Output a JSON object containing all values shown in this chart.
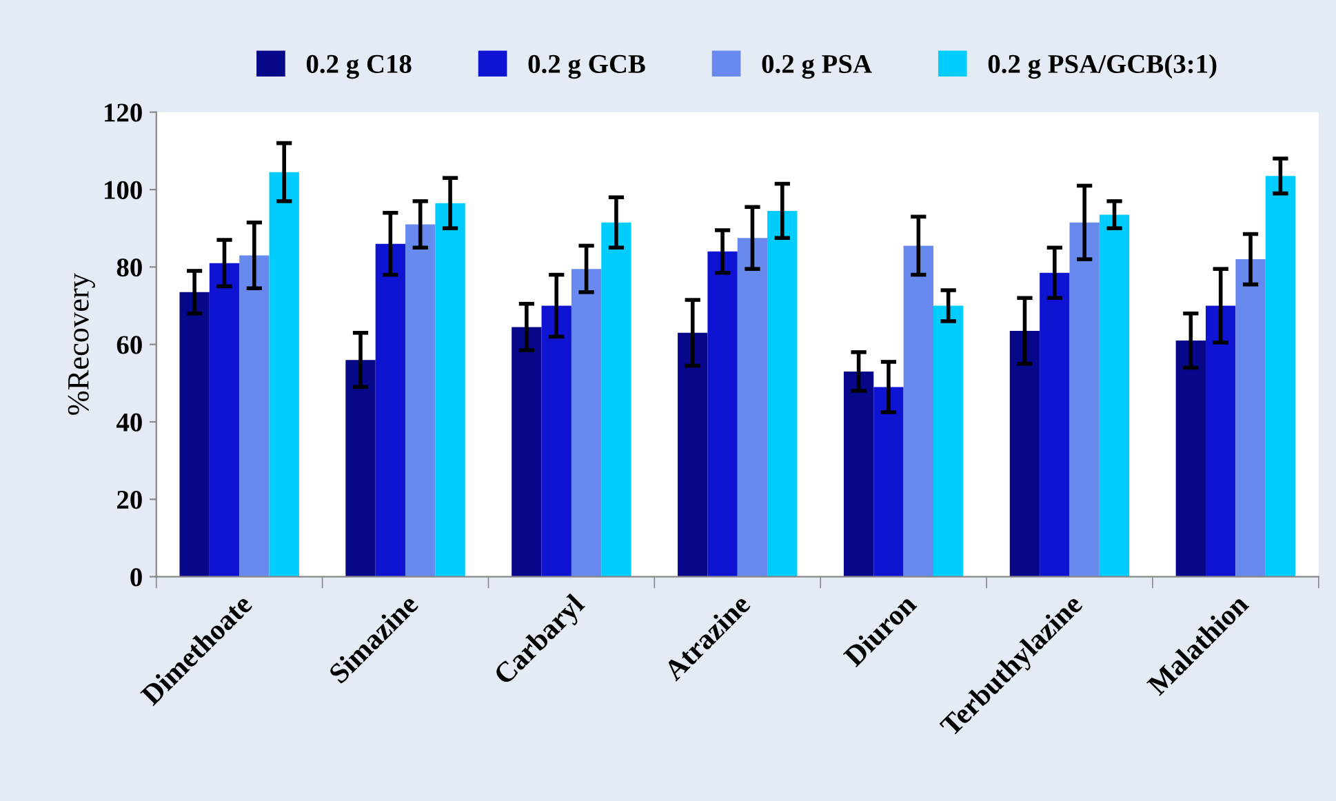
{
  "chart_data": {
    "type": "bar",
    "ylabel": "%Recovery",
    "categories": [
      "Dimethoate",
      "Simazine",
      "Carbaryl",
      "Atrazine",
      "Diuron",
      "Terbuthylazine",
      "Malathion"
    ],
    "series": [
      {
        "name": "0.2 g C18",
        "color": "#07078a",
        "values": [
          73.5,
          56,
          64.5,
          63,
          53,
          63.5,
          61
        ],
        "errors": [
          5.5,
          7,
          6,
          8.5,
          5,
          8.5,
          7
        ]
      },
      {
        "name": "0.2 g GCB",
        "color": "#0f14d2",
        "values": [
          81,
          86,
          70,
          84,
          49,
          78.5,
          70
        ],
        "errors": [
          6,
          8,
          8,
          5.5,
          6.5,
          6.5,
          9.5
        ]
      },
      {
        "name": "0.2 g PSA",
        "color": "#6889ee",
        "values": [
          83,
          91,
          79.5,
          87.5,
          85.5,
          91.5,
          82
        ],
        "errors": [
          8.5,
          6,
          6,
          8,
          7.5,
          9.5,
          6.5
        ]
      },
      {
        "name": "0.2 g PSA/GCB(3:1)",
        "color": "#00ccff",
        "values": [
          104.5,
          96.5,
          91.5,
          94.5,
          70,
          93.5,
          103.5
        ],
        "errors": [
          7.5,
          6.5,
          6.5,
          7,
          4,
          3.5,
          4.5
        ]
      }
    ],
    "ylim": [
      0,
      120
    ],
    "yticks": [
      0,
      20,
      40,
      60,
      80,
      100,
      120
    ],
    "grid": false,
    "legend": "top"
  }
}
